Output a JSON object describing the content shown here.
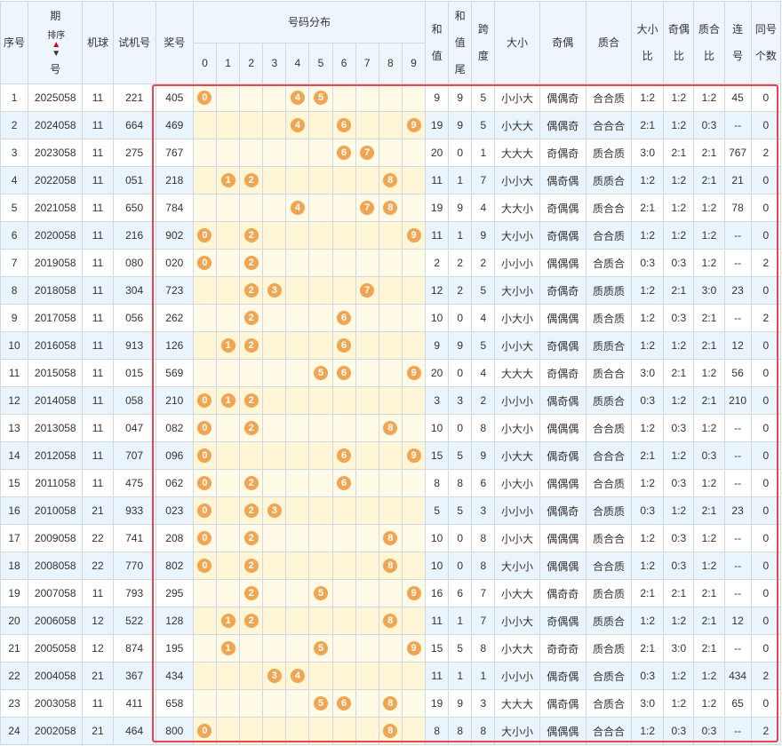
{
  "headers": {
    "seq": "序号",
    "period_a": "期",
    "period_b": "号",
    "sort_label": "排序",
    "sort_up": "▲",
    "sort_down": "▼",
    "machine": "机球",
    "test": "试机号",
    "prize": "奖号",
    "dist": "号码分布",
    "digits": [
      "0",
      "1",
      "2",
      "3",
      "4",
      "5",
      "6",
      "7",
      "8",
      "9"
    ],
    "sum_a": "和",
    "sum_b": "值",
    "tail_a": "和",
    "tail_b": "值",
    "tail_c": "尾",
    "span_a": "跨",
    "span_b": "度",
    "size": "大小",
    "parity": "奇偶",
    "prime": "质合",
    "size_ratio_a": "大小",
    "size_ratio_b": "比",
    "parity_ratio_a": "奇偶",
    "parity_ratio_b": "比",
    "prime_ratio_a": "质合",
    "prime_ratio_b": "比",
    "consec_a": "连",
    "consec_b": "号",
    "same_a": "同号",
    "same_b": "个数"
  },
  "rows": [
    {
      "seq": "1",
      "period": "2025058",
      "machine": "11",
      "test": "221",
      "prize": "405",
      "balls": [
        "0",
        "4",
        "5"
      ],
      "sum": "9",
      "tail": "9",
      "span": "5",
      "size": "小小大",
      "parity": "偶偶奇",
      "prime": "合合质",
      "sr": "1:2",
      "pr": "1:2",
      "qr": "1:2",
      "consec": "45",
      "same": "0"
    },
    {
      "seq": "2",
      "period": "2024058",
      "machine": "11",
      "test": "664",
      "prize": "469",
      "balls": [
        "4",
        "6",
        "9"
      ],
      "sum": "19",
      "tail": "9",
      "span": "5",
      "size": "小大大",
      "parity": "偶偶奇",
      "prime": "合合合",
      "sr": "2:1",
      "pr": "1:2",
      "qr": "0:3",
      "consec": "--",
      "same": "0"
    },
    {
      "seq": "3",
      "period": "2023058",
      "machine": "11",
      "test": "275",
      "prize": "767",
      "balls": [
        "6",
        "7"
      ],
      "sum": "20",
      "tail": "0",
      "span": "1",
      "size": "大大大",
      "parity": "奇偶奇",
      "prime": "质合质",
      "sr": "3:0",
      "pr": "2:1",
      "qr": "2:1",
      "consec": "767",
      "same": "2"
    },
    {
      "seq": "4",
      "period": "2022058",
      "machine": "11",
      "test": "051",
      "prize": "218",
      "balls": [
        "1",
        "2",
        "8"
      ],
      "sum": "11",
      "tail": "1",
      "span": "7",
      "size": "小小大",
      "parity": "偶奇偶",
      "prime": "质质合",
      "sr": "1:2",
      "pr": "1:2",
      "qr": "2:1",
      "consec": "21",
      "same": "0"
    },
    {
      "seq": "5",
      "period": "2021058",
      "machine": "11",
      "test": "650",
      "prize": "784",
      "balls": [
        "4",
        "7",
        "8"
      ],
      "sum": "19",
      "tail": "9",
      "span": "4",
      "size": "大大小",
      "parity": "奇偶偶",
      "prime": "质合合",
      "sr": "2:1",
      "pr": "1:2",
      "qr": "1:2",
      "consec": "78",
      "same": "0"
    },
    {
      "seq": "6",
      "period": "2020058",
      "machine": "11",
      "test": "216",
      "prize": "902",
      "balls": [
        "0",
        "2",
        "9"
      ],
      "sum": "11",
      "tail": "1",
      "span": "9",
      "size": "大小小",
      "parity": "奇偶偶",
      "prime": "合合质",
      "sr": "1:2",
      "pr": "1:2",
      "qr": "1:2",
      "consec": "--",
      "same": "0"
    },
    {
      "seq": "7",
      "period": "2019058",
      "machine": "11",
      "test": "080",
      "prize": "020",
      "balls": [
        "0",
        "2"
      ],
      "sum": "2",
      "tail": "2",
      "span": "2",
      "size": "小小小",
      "parity": "偶偶偶",
      "prime": "合质合",
      "sr": "0:3",
      "pr": "0:3",
      "qr": "1:2",
      "consec": "--",
      "same": "2"
    },
    {
      "seq": "8",
      "period": "2018058",
      "machine": "11",
      "test": "304",
      "prize": "723",
      "balls": [
        "2",
        "3",
        "7"
      ],
      "sum": "12",
      "tail": "2",
      "span": "5",
      "size": "大小小",
      "parity": "奇偶奇",
      "prime": "质质质",
      "sr": "1:2",
      "pr": "2:1",
      "qr": "3:0",
      "consec": "23",
      "same": "0"
    },
    {
      "seq": "9",
      "period": "2017058",
      "machine": "11",
      "test": "056",
      "prize": "262",
      "balls": [
        "2",
        "6"
      ],
      "sum": "10",
      "tail": "0",
      "span": "4",
      "size": "小大小",
      "parity": "偶偶偶",
      "prime": "质合质",
      "sr": "1:2",
      "pr": "0:3",
      "qr": "2:1",
      "consec": "--",
      "same": "2"
    },
    {
      "seq": "10",
      "period": "2016058",
      "machine": "11",
      "test": "913",
      "prize": "126",
      "balls": [
        "1",
        "2",
        "6"
      ],
      "sum": "9",
      "tail": "9",
      "span": "5",
      "size": "小小大",
      "parity": "奇偶偶",
      "prime": "质质合",
      "sr": "1:2",
      "pr": "1:2",
      "qr": "2:1",
      "consec": "12",
      "same": "0"
    },
    {
      "seq": "11",
      "period": "2015058",
      "machine": "11",
      "test": "015",
      "prize": "569",
      "balls": [
        "5",
        "6",
        "9"
      ],
      "sum": "20",
      "tail": "0",
      "span": "4",
      "size": "大大大",
      "parity": "奇偶奇",
      "prime": "质合合",
      "sr": "3:0",
      "pr": "2:1",
      "qr": "1:2",
      "consec": "56",
      "same": "0"
    },
    {
      "seq": "12",
      "period": "2014058",
      "machine": "11",
      "test": "058",
      "prize": "210",
      "balls": [
        "0",
        "1",
        "2"
      ],
      "sum": "3",
      "tail": "3",
      "span": "2",
      "size": "小小小",
      "parity": "偶奇偶",
      "prime": "质质合",
      "sr": "0:3",
      "pr": "1:2",
      "qr": "2:1",
      "consec": "210",
      "same": "0"
    },
    {
      "seq": "13",
      "period": "2013058",
      "machine": "11",
      "test": "047",
      "prize": "082",
      "balls": [
        "0",
        "2",
        "8"
      ],
      "sum": "10",
      "tail": "0",
      "span": "8",
      "size": "小大小",
      "parity": "偶偶偶",
      "prime": "合合质",
      "sr": "1:2",
      "pr": "0:3",
      "qr": "1:2",
      "consec": "--",
      "same": "0"
    },
    {
      "seq": "14",
      "period": "2012058",
      "machine": "11",
      "test": "707",
      "prize": "096",
      "balls": [
        "0",
        "6",
        "9"
      ],
      "sum": "15",
      "tail": "5",
      "span": "9",
      "size": "小大大",
      "parity": "偶奇偶",
      "prime": "合合合",
      "sr": "2:1",
      "pr": "1:2",
      "qr": "0:3",
      "consec": "--",
      "same": "0"
    },
    {
      "seq": "15",
      "period": "2011058",
      "machine": "11",
      "test": "475",
      "prize": "062",
      "balls": [
        "0",
        "2",
        "6"
      ],
      "sum": "8",
      "tail": "8",
      "span": "6",
      "size": "小大小",
      "parity": "偶偶偶",
      "prime": "合合质",
      "sr": "1:2",
      "pr": "0:3",
      "qr": "1:2",
      "consec": "--",
      "same": "0"
    },
    {
      "seq": "16",
      "period": "2010058",
      "machine": "21",
      "test": "933",
      "prize": "023",
      "balls": [
        "0",
        "2",
        "3"
      ],
      "sum": "5",
      "tail": "5",
      "span": "3",
      "size": "小小小",
      "parity": "偶偶奇",
      "prime": "合质质",
      "sr": "0:3",
      "pr": "1:2",
      "qr": "2:1",
      "consec": "23",
      "same": "0"
    },
    {
      "seq": "17",
      "period": "2009058",
      "machine": "22",
      "test": "741",
      "prize": "208",
      "balls": [
        "0",
        "2",
        "8"
      ],
      "sum": "10",
      "tail": "0",
      "span": "8",
      "size": "小小大",
      "parity": "偶偶偶",
      "prime": "质合合",
      "sr": "1:2",
      "pr": "0:3",
      "qr": "1:2",
      "consec": "--",
      "same": "0"
    },
    {
      "seq": "18",
      "period": "2008058",
      "machine": "22",
      "test": "770",
      "prize": "802",
      "balls": [
        "0",
        "2",
        "8"
      ],
      "sum": "10",
      "tail": "0",
      "span": "8",
      "size": "大小小",
      "parity": "偶偶偶",
      "prime": "合合质",
      "sr": "1:2",
      "pr": "0:3",
      "qr": "1:2",
      "consec": "--",
      "same": "0"
    },
    {
      "seq": "19",
      "period": "2007058",
      "machine": "11",
      "test": "793",
      "prize": "295",
      "balls": [
        "2",
        "5",
        "9"
      ],
      "sum": "16",
      "tail": "6",
      "span": "7",
      "size": "小大大",
      "parity": "偶奇奇",
      "prime": "质合质",
      "sr": "2:1",
      "pr": "2:1",
      "qr": "2:1",
      "consec": "--",
      "same": "0"
    },
    {
      "seq": "20",
      "period": "2006058",
      "machine": "12",
      "test": "522",
      "prize": "128",
      "balls": [
        "1",
        "2",
        "8"
      ],
      "sum": "11",
      "tail": "1",
      "span": "7",
      "size": "小小大",
      "parity": "奇偶偶",
      "prime": "质质合",
      "sr": "1:2",
      "pr": "1:2",
      "qr": "2:1",
      "consec": "12",
      "same": "0"
    },
    {
      "seq": "21",
      "period": "2005058",
      "machine": "12",
      "test": "874",
      "prize": "195",
      "balls": [
        "1",
        "5",
        "9"
      ],
      "sum": "15",
      "tail": "5",
      "span": "8",
      "size": "小大大",
      "parity": "奇奇奇",
      "prime": "质合质",
      "sr": "2:1",
      "pr": "3:0",
      "qr": "2:1",
      "consec": "--",
      "same": "0"
    },
    {
      "seq": "22",
      "period": "2004058",
      "machine": "21",
      "test": "367",
      "prize": "434",
      "balls": [
        "3",
        "4"
      ],
      "sum": "11",
      "tail": "1",
      "span": "1",
      "size": "小小小",
      "parity": "偶奇偶",
      "prime": "合质合",
      "sr": "0:3",
      "pr": "1:2",
      "qr": "1:2",
      "consec": "434",
      "same": "2"
    },
    {
      "seq": "23",
      "period": "2003058",
      "machine": "11",
      "test": "411",
      "prize": "658",
      "balls": [
        "5",
        "6",
        "8"
      ],
      "sum": "19",
      "tail": "9",
      "span": "3",
      "size": "大大大",
      "parity": "偶奇偶",
      "prime": "合质合",
      "sr": "3:0",
      "pr": "1:2",
      "qr": "1:2",
      "consec": "65",
      "same": "0"
    },
    {
      "seq": "24",
      "period": "2002058",
      "machine": "21",
      "test": "464",
      "prize": "800",
      "balls": [
        "0",
        "8"
      ],
      "sum": "8",
      "tail": "8",
      "span": "8",
      "size": "大小小",
      "parity": "偶偶偶",
      "prime": "合合合",
      "sr": "1:2",
      "pr": "0:3",
      "qr": "0:3",
      "consec": "--",
      "same": "2"
    }
  ],
  "colors": {
    "ball": "#f0a552",
    "highlight_border": "#e8454f",
    "header_bg": "#eef5fd",
    "alt_row_bg": "#eaf4fc",
    "dist_bg": "#fffbe6"
  }
}
